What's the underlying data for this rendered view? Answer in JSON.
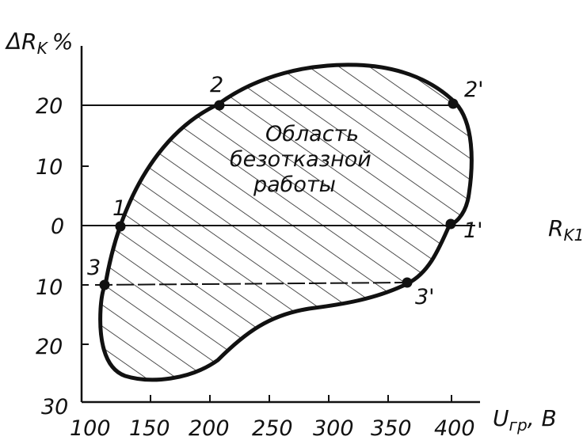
{
  "axes": {
    "y_title": "ΔR",
    "y_title_sub": "K",
    "y_title_unit": "%",
    "x_title": "U",
    "x_title_sub": "гр",
    "x_title_unit": ", В",
    "right_label": "R",
    "right_label_sub": "K1",
    "origin_label": "30",
    "x_ticks": [
      "100",
      "150",
      "200",
      "250",
      "300",
      "350",
      "400"
    ],
    "y_ticks": [
      "20",
      "10",
      "0",
      "10",
      "20"
    ]
  },
  "region_label": [
    "Область",
    "безотказной",
    "работы"
  ],
  "points": [
    "1",
    "2",
    "3",
    "1'",
    "2'",
    "3'"
  ]
}
